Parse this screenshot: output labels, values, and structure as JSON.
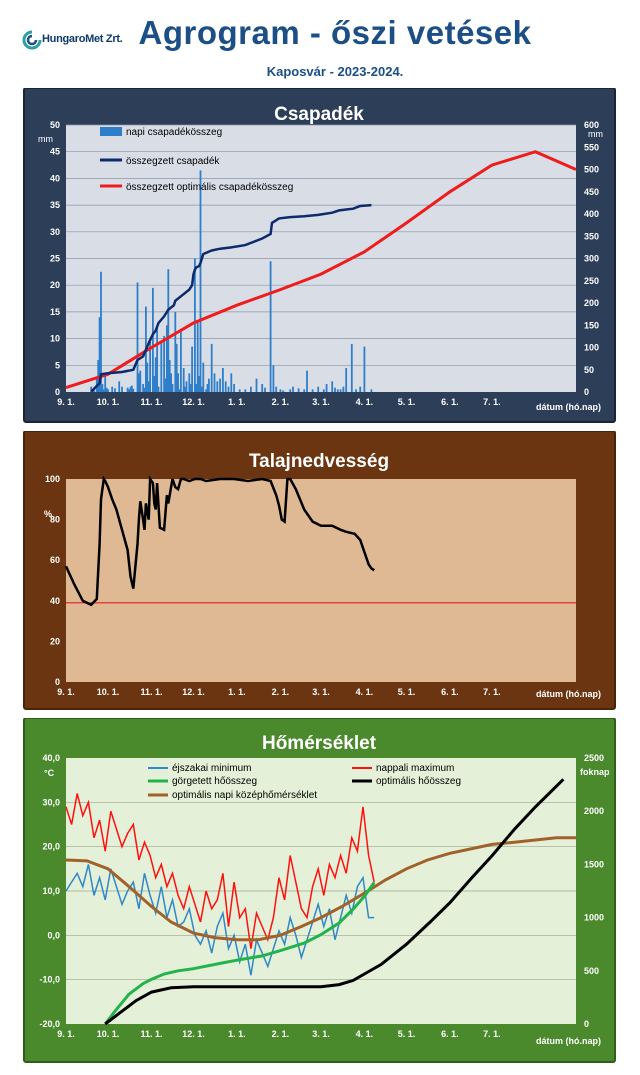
{
  "header": {
    "logo_text": "HungaroMet Zrt.",
    "title": "Agrogram - őszi vetések",
    "subtitle": "Kaposvár  - 2023-2024."
  },
  "colors": {
    "panel1_frame": "#2c3e58",
    "panel1_plot": "#d9dde6",
    "panel2_frame": "#6a3510",
    "panel2_plot": "#deb994",
    "panel3_frame": "#4a8a2c",
    "panel3_plot": "#e5f0d8",
    "daily_precip": "#2f7ec9",
    "cum_precip": "#0d2a6e",
    "optimal_precip": "#ee1c1c",
    "soil_moisture": "#000000",
    "soil_threshold": "#e02020",
    "temp_min": "#2f88c8",
    "temp_max": "#ff1010",
    "heat_sum": "#20b44a",
    "optimal_heat_sum": "#000000",
    "optimal_mean_temp": "#a0622a"
  },
  "chart_data": [
    {
      "type": "bar",
      "title": "Csapadék",
      "x_tick_labels": [
        "9. 1.",
        "10. 1.",
        "11. 1.",
        "12. 1.",
        "1. 1.",
        "2. 1.",
        "3. 1.",
        "4. 1.",
        "5. 1.",
        "6. 1.",
        "7. 1."
      ],
      "xlabel": "dátum (hó.nap)",
      "xlim_days": [
        0,
        364
      ],
      "x_tick_days": [
        0,
        30,
        61,
        91,
        122,
        153,
        182,
        213,
        243,
        274,
        304
      ],
      "ylabel_left": "mm",
      "ylim_left": [
        0,
        50
      ],
      "y_ticks_left": [
        0,
        5,
        10,
        15,
        20,
        25,
        30,
        35,
        40,
        45,
        50
      ],
      "ylabel_right": "mm",
      "ylim_right": [
        0,
        600
      ],
      "y_ticks_right": [
        0,
        50,
        100,
        150,
        200,
        250,
        300,
        350,
        400,
        450,
        500,
        550,
        600
      ],
      "legend": [
        "napi csapadékösszeg",
        "összegzett csapadék",
        "összegzett optimális csapadékösszeg"
      ],
      "series": [
        {
          "name": "napi csapadékösszeg",
          "axis": "left",
          "days": [
            18,
            20,
            22,
            23,
            24,
            25,
            26,
            27,
            28,
            29,
            30,
            33,
            35,
            38,
            40,
            44,
            45,
            46,
            47,
            48,
            51,
            52,
            53,
            55,
            56,
            57,
            58,
            59,
            60,
            62,
            63,
            64,
            65,
            66,
            68,
            70,
            71,
            72,
            73,
            74,
            75,
            76,
            78,
            79,
            80,
            81,
            82,
            84,
            85,
            86,
            88,
            89,
            90,
            92,
            93,
            94,
            95,
            96,
            97,
            98,
            100,
            101,
            102,
            104,
            106,
            108,
            110,
            112,
            114,
            116,
            118,
            120,
            124,
            128,
            132,
            136,
            140,
            142,
            146,
            148,
            150,
            153,
            155,
            160,
            162,
            166,
            170,
            172,
            176,
            180,
            184,
            186,
            190,
            192,
            194,
            196,
            198,
            200,
            204,
            207,
            210,
            213,
            218
          ],
          "values": [
            1.0,
            0.8,
            2.5,
            6.0,
            14.0,
            22.5,
            1.5,
            0.5,
            3.0,
            0.8,
            0.5,
            1.0,
            0.7,
            2.0,
            1.0,
            0.8,
            0.5,
            1.0,
            1.2,
            0.6,
            20.5,
            3.5,
            4.0,
            1.5,
            0.8,
            16.0,
            5.5,
            2.0,
            9.5,
            19.5,
            3.0,
            6.5,
            12.0,
            1.0,
            9.5,
            10.5,
            2.5,
            12.5,
            23.0,
            6.0,
            3.5,
            1.5,
            15.0,
            9.0,
            3.5,
            0.5,
            11.5,
            4.5,
            1.0,
            2.0,
            3.5,
            1.5,
            8.5,
            25.0,
            1.5,
            13.0,
            3.0,
            41.5,
            1.0,
            5.5,
            0.5,
            1.5,
            2.5,
            9.0,
            3.5,
            2.0,
            2.5,
            4.5,
            2.0,
            1.0,
            3.5,
            1.5,
            0.5,
            0.5,
            1.0,
            2.5,
            1.5,
            0.8,
            24.5,
            5.0,
            1.0,
            0.5,
            0.3,
            0.5,
            1.0,
            0.7,
            0.5,
            4.0,
            0.5,
            1.0,
            0.5,
            1.5,
            2.0,
            0.8,
            0.5,
            0.5,
            1.0,
            4.5,
            9.0,
            0.5,
            1.0,
            8.5,
            0.5
          ]
        },
        {
          "name": "összegzett csapadék",
          "axis": "right",
          "days": [
            18,
            24,
            25,
            30,
            40,
            48,
            51,
            55,
            57,
            59,
            62,
            64,
            66,
            70,
            73,
            77,
            78,
            82,
            88,
            90,
            91,
            92,
            93,
            95,
            96,
            98,
            104,
            110,
            118,
            128,
            140,
            146,
            147,
            152,
            160,
            170,
            180,
            190,
            195,
            200,
            205,
            210,
            218
          ],
          "values": [
            1,
            20,
            40,
            42,
            45,
            50,
            72,
            80,
            95,
            110,
            130,
            138,
            155,
            170,
            185,
            195,
            205,
            215,
            230,
            240,
            265,
            275,
            280,
            283,
            290,
            310,
            318,
            322,
            325,
            330,
            345,
            355,
            380,
            390,
            393,
            395,
            398,
            403,
            408,
            410,
            412,
            418,
            420
          ]
        },
        {
          "name": "összegzett optimális csapadékösszeg",
          "axis": "right",
          "days": [
            0,
            30,
            60,
            91,
            122,
            153,
            182,
            213,
            243,
            274,
            304,
            335,
            364
          ],
          "values": [
            10,
            40,
            98,
            155,
            195,
            230,
            265,
            315,
            380,
            450,
            510,
            540,
            500
          ]
        }
      ]
    },
    {
      "type": "line",
      "title": "Talajnedvesség",
      "x_tick_labels": [
        "9. 1.",
        "10. 1.",
        "11. 1.",
        "12. 1.",
        "1. 1.",
        "2. 1.",
        "3. 1.",
        "4. 1.",
        "5. 1.",
        "6. 1.",
        "7. 1."
      ],
      "xlabel": "dátum (hó.nap)",
      "xlim_days": [
        0,
        364
      ],
      "x_tick_days": [
        0,
        30,
        61,
        91,
        122,
        153,
        182,
        213,
        243,
        274,
        304
      ],
      "ylabel": "%",
      "ylim": [
        0,
        100
      ],
      "y_ticks": [
        0,
        20,
        40,
        60,
        80,
        100
      ],
      "threshold": 39,
      "series": [
        {
          "name": "Talajnedvesség",
          "days": [
            0,
            6,
            12,
            18,
            22,
            24,
            25,
            27,
            28,
            30,
            33,
            36,
            40,
            44,
            46,
            48,
            51,
            52,
            53,
            55,
            56,
            57,
            59,
            60,
            62,
            63,
            64,
            65,
            67,
            70,
            72,
            73,
            74,
            76,
            78,
            80,
            82,
            84,
            88,
            92,
            96,
            100,
            110,
            120,
            130,
            140,
            146,
            150,
            152,
            154,
            156,
            158,
            160,
            164,
            170,
            176,
            182,
            190,
            196,
            200,
            206,
            210,
            214,
            216,
            218,
            220
          ],
          "values": [
            57,
            48,
            40,
            38,
            41,
            68,
            90,
            100,
            99,
            96,
            90,
            85,
            75,
            65,
            52,
            46,
            68,
            80,
            89,
            80,
            75,
            88,
            80,
            100,
            98,
            88,
            85,
            98,
            76,
            75,
            92,
            88,
            92,
            100,
            96,
            95,
            100,
            100,
            99,
            100,
            100,
            99,
            100,
            100,
            99,
            100,
            99,
            92,
            87,
            80,
            79,
            100,
            100,
            95,
            85,
            79,
            77,
            77,
            75,
            74,
            73,
            70,
            62,
            58,
            56,
            55
          ]
        }
      ]
    },
    {
      "type": "line",
      "title": "Hőmérséklet",
      "x_tick_labels": [
        "9. 1.",
        "10. 1.",
        "11. 1.",
        "12. 1.",
        "1. 1.",
        "2. 1.",
        "3. 1.",
        "4. 1.",
        "5. 1.",
        "6. 1.",
        "7. 1."
      ],
      "xlabel": "dátum (hó.nap)",
      "xlim_days": [
        0,
        364
      ],
      "x_tick_days": [
        0,
        30,
        61,
        91,
        122,
        153,
        182,
        213,
        243,
        274,
        304
      ],
      "ylabel_left": "°C",
      "ylim_left": [
        -20,
        40
      ],
      "y_tick_labels_left": [
        "-20,0",
        "-10,0",
        "0,0",
        "10,0",
        "20,0",
        "30,0",
        "40,0"
      ],
      "ylabel_right": "foknap",
      "ylim_right": [
        0,
        2500
      ],
      "y_ticks_right": [
        0,
        500,
        1000,
        1500,
        2000,
        2500
      ],
      "legend": [
        "éjszakai minimum",
        "nappali maximum",
        "görgetett hőösszeg",
        "optimális hőösszeg",
        "optimális napi középhőmérséklet"
      ],
      "series": [
        {
          "name": "éjszakai minimum",
          "axis": "left",
          "days": [
            0,
            4,
            8,
            12,
            16,
            20,
            24,
            28,
            32,
            36,
            40,
            44,
            48,
            52,
            56,
            60,
            64,
            68,
            72,
            76,
            80,
            84,
            88,
            92,
            96,
            100,
            104,
            108,
            112,
            116,
            120,
            124,
            128,
            132,
            136,
            140,
            144,
            148,
            152,
            156,
            160,
            164,
            168,
            172,
            176,
            180,
            184,
            188,
            192,
            196,
            200,
            204,
            208,
            212,
            216,
            220
          ],
          "values": [
            10,
            12,
            14,
            11,
            16,
            9,
            13,
            8,
            15,
            11,
            7,
            10,
            12,
            6,
            14,
            9,
            5,
            11,
            4,
            8,
            2,
            3,
            6,
            0,
            -2,
            1,
            -4,
            2,
            5,
            -3,
            0,
            -6,
            -2,
            -9,
            -1,
            -4,
            -7,
            -3,
            1,
            -2,
            4,
            0,
            -5,
            -1,
            3,
            7,
            2,
            6,
            -1,
            4,
            9,
            5,
            11,
            13,
            4,
            4
          ]
        },
        {
          "name": "nappali maximum",
          "axis": "left",
          "days": [
            0,
            4,
            8,
            12,
            16,
            20,
            24,
            28,
            32,
            36,
            40,
            44,
            48,
            52,
            56,
            60,
            64,
            68,
            72,
            76,
            80,
            84,
            88,
            92,
            96,
            100,
            104,
            108,
            112,
            116,
            120,
            124,
            128,
            132,
            136,
            140,
            144,
            148,
            152,
            156,
            160,
            164,
            168,
            172,
            176,
            180,
            184,
            188,
            192,
            196,
            200,
            204,
            208,
            212,
            216,
            220
          ],
          "values": [
            29,
            25,
            32,
            27,
            30,
            22,
            26,
            19,
            28,
            24,
            20,
            23,
            25,
            17,
            21,
            18,
            13,
            16,
            11,
            14,
            9,
            6,
            11,
            7,
            3,
            10,
            6,
            8,
            14,
            2,
            12,
            4,
            6,
            -3,
            5,
            2,
            -1,
            4,
            13,
            8,
            18,
            12,
            6,
            4,
            11,
            15,
            9,
            16,
            13,
            18,
            14,
            22,
            19,
            29,
            18,
            12
          ]
        },
        {
          "name": "görgetett hőösszeg",
          "axis": "right",
          "days": [
            28,
            35,
            45,
            55,
            61,
            70,
            80,
            91,
            110,
            122,
            140,
            153,
            170,
            182,
            195,
            205,
            213,
            220
          ],
          "values": [
            0,
            120,
            280,
            380,
            420,
            470,
            500,
            520,
            570,
            600,
            640,
            690,
            760,
            840,
            950,
            1080,
            1200,
            1330
          ]
        },
        {
          "name": "optimális hőösszeg",
          "axis": "right",
          "days": [
            28,
            40,
            50,
            61,
            75,
            91,
            110,
            122,
            140,
            153,
            170,
            182,
            195,
            205,
            213,
            225,
            243,
            260,
            274,
            290,
            304,
            320,
            335,
            355
          ],
          "values": [
            0,
            120,
            220,
            300,
            340,
            350,
            350,
            350,
            350,
            350,
            350,
            350,
            370,
            410,
            470,
            560,
            750,
            960,
            1140,
            1380,
            1580,
            1830,
            2040,
            2300
          ]
        },
        {
          "name": "optimális napi középhőmérséklet",
          "axis": "left",
          "days": [
            0,
            15,
            30,
            45,
            61,
            75,
            91,
            106,
            122,
            137,
            153,
            168,
            182,
            197,
            213,
            228,
            243,
            258,
            274,
            289,
            304,
            320,
            335,
            350,
            364
          ],
          "values": [
            17,
            16.8,
            15,
            11,
            6.5,
            3,
            0.5,
            -0.5,
            -1,
            -1,
            0,
            2,
            4,
            6.5,
            9.5,
            12.5,
            15,
            17,
            18.5,
            19.5,
            20.5,
            21,
            21.5,
            22,
            22
          ]
        }
      ]
    }
  ]
}
